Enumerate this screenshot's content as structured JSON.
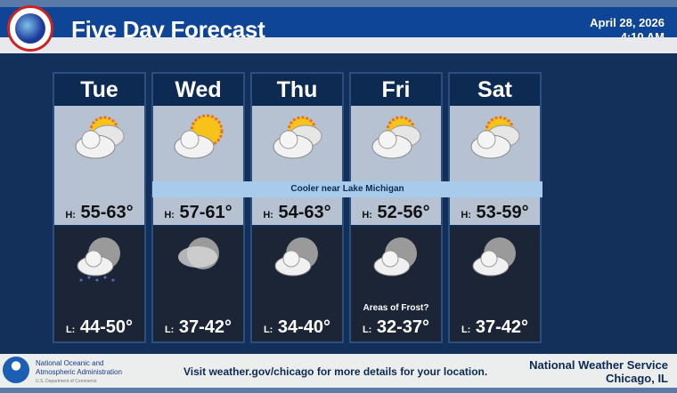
{
  "header": {
    "title": "Five Day Forecast",
    "date": "April 28, 2026",
    "time": "4:10 AM"
  },
  "banner": "Cooler near Lake Michigan",
  "days": [
    {
      "name": "Tue",
      "day_icon": "partly-sunny-icon",
      "high_prefix": "H:",
      "high": "55-63°",
      "night_icon": "cloudy-moon-showers-icon",
      "low_prefix": "L:",
      "low": "44-50°",
      "note": ""
    },
    {
      "name": "Wed",
      "day_icon": "mostly-sunny-icon",
      "high_prefix": "H:",
      "high": "57-61°",
      "night_icon": "cloudy-moon-icon",
      "low_prefix": "L:",
      "low": "37-42°",
      "note": ""
    },
    {
      "name": "Thu",
      "day_icon": "partly-sunny-icon",
      "high_prefix": "H:",
      "high": "54-63°",
      "night_icon": "partly-cloudy-moon-icon",
      "low_prefix": "L:",
      "low": "34-40°",
      "note": ""
    },
    {
      "name": "Fri",
      "day_icon": "partly-sunny-icon",
      "high_prefix": "H:",
      "high": "52-56°",
      "night_icon": "partly-cloudy-moon-icon",
      "low_prefix": "L:",
      "low": "32-37°",
      "note": "Areas of Frost?"
    },
    {
      "name": "Sat",
      "day_icon": "partly-sunny-icon",
      "high_prefix": "H:",
      "high": "53-59°",
      "night_icon": "partly-cloudy-moon-icon",
      "low_prefix": "L:",
      "low": "37-42°",
      "note": ""
    }
  ],
  "footer": {
    "noaa_line1": "National Oceanic and",
    "noaa_line2": "Atmospheric Administration",
    "noaa_line3": "U.S. Department of Commerce",
    "visit": "Visit weather.gov/chicago for more details for your location.",
    "office_line1": "National Weather Service",
    "office_line2": "Chicago, IL"
  }
}
